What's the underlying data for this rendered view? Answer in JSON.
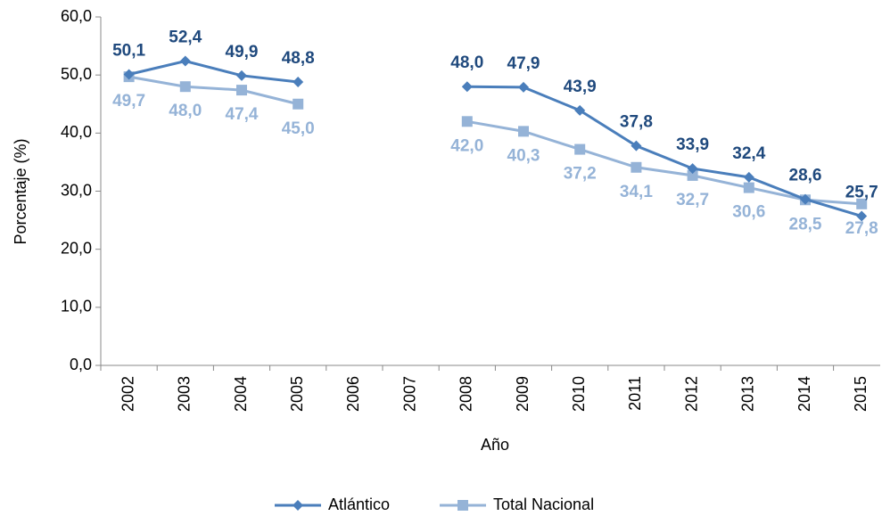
{
  "chart_data": {
    "type": "line",
    "x_label": "Año",
    "y_label": "Porcentaje (%)",
    "categories": [
      "2002",
      "2003",
      "2004",
      "2005",
      "2006",
      "2007",
      "2008",
      "2009",
      "2010",
      "2011",
      "2012",
      "2013",
      "2014",
      "2015"
    ],
    "series": [
      {
        "name": "Atlántico",
        "color": "#4a7ebb",
        "label_color": "#1f497d",
        "marker": "diamond",
        "values": [
          50.1,
          52.4,
          49.9,
          48.8,
          null,
          null,
          48.0,
          47.9,
          43.9,
          37.8,
          33.9,
          32.4,
          28.6,
          25.7
        ],
        "value_labels": [
          "50,1",
          "52,4",
          "49,9",
          "48,8",
          null,
          null,
          "48,0",
          "47,9",
          "43,9",
          "37,8",
          "33,9",
          "32,4",
          "28,6",
          "25,7"
        ]
      },
      {
        "name": "Total Nacional",
        "color": "#95b3d7",
        "label_color": "#95b3d7",
        "marker": "square",
        "values": [
          49.7,
          48.0,
          47.4,
          45.0,
          null,
          null,
          42.0,
          40.3,
          37.2,
          34.1,
          32.7,
          30.6,
          28.5,
          27.8
        ],
        "value_labels": [
          "49,7",
          "48,0",
          "47,4",
          "45,0",
          null,
          null,
          "42,0",
          "40,3",
          "37,2",
          "34,1",
          "32,7",
          "30,6",
          "28,5",
          "27,8"
        ]
      }
    ],
    "ylim": [
      0,
      60
    ],
    "yticks": [
      {
        "value": 0,
        "label": "0,0"
      },
      {
        "value": 10,
        "label": "10,0"
      },
      {
        "value": 20,
        "label": "20,0"
      },
      {
        "value": 30,
        "label": "30,0"
      },
      {
        "value": 40,
        "label": "40,0"
      },
      {
        "value": 50,
        "label": "50,0"
      },
      {
        "value": 60,
        "label": "60,0"
      }
    ],
    "legend": "bottom"
  }
}
